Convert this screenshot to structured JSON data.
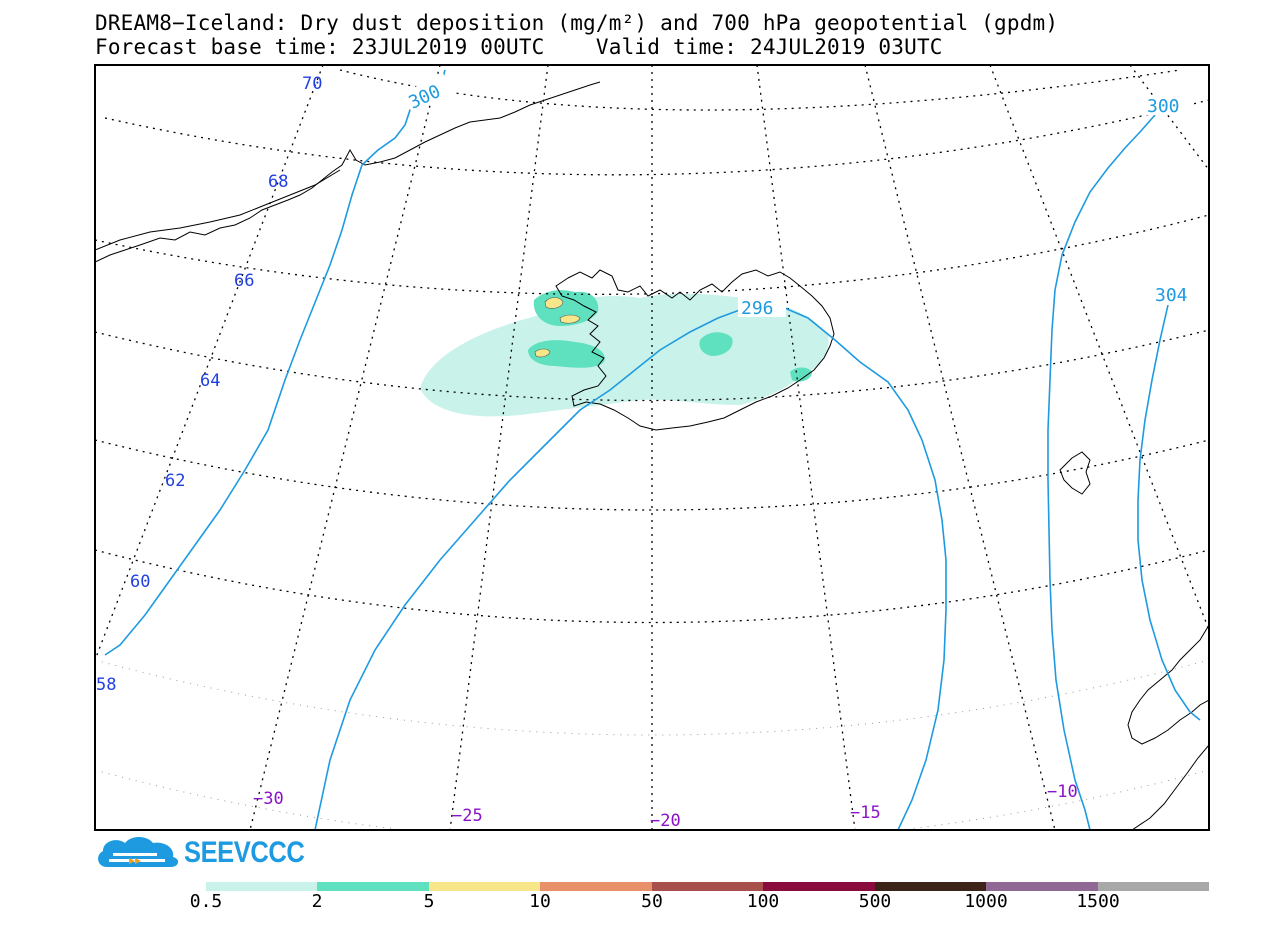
{
  "title": {
    "line1": "DREAM8−Iceland: Dry dust deposition (mg/m²) and 700 hPa geopotential (gpdm)",
    "line2": "Forecast base time: 23JUL2019 00UTC    Valid time: 24JUL2019 03UTC"
  },
  "map": {
    "latitude_labels": [
      "70",
      "68",
      "66",
      "64",
      "62",
      "60",
      "58"
    ],
    "longitude_labels": [
      "−30",
      "−25",
      "−20",
      "−15",
      "−10"
    ],
    "contour_labels": [
      "300",
      "300",
      "296",
      "304"
    ],
    "colors": {
      "contour": "#1e9be0",
      "lat_label": "#2040e0",
      "lon_label": "#8a12c8",
      "coast": "#000000"
    }
  },
  "logo": {
    "text": "SEEVCCC",
    "color": "#1e9be0"
  },
  "legend": {
    "labels": [
      "0.5",
      "2",
      "5",
      "10",
      "50",
      "100",
      "500",
      "1000",
      "1500"
    ],
    "colors": [
      "#c8f2ea",
      "#5fe0be",
      "#f8e68a",
      "#e8906a",
      "#a8504c",
      "#880c3c",
      "#3c2418",
      "#906894",
      "#a8a8a8"
    ]
  }
}
